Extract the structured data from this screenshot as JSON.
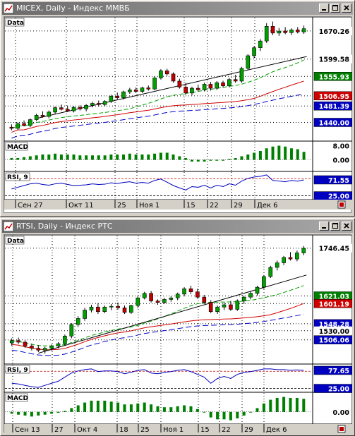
{
  "colors": {
    "up": "#00a000",
    "down": "#c00000",
    "price_line": "#000000",
    "grid": "#000000",
    "ma_green": "#00a000",
    "ma_red": "#d00000",
    "ma_blue": "#0000d0",
    "macd": "#008000",
    "rsi": "#0000c0"
  },
  "windows": [
    {
      "title": "MICEX, Daily - Индекс ММВБ",
      "price_panel_label": "Data",
      "price_labels": [
        {
          "text": "1670.26",
          "bg": "#ffffff",
          "fg": "#000000"
        },
        {
          "text": "1599.58",
          "bg": "#ffffff",
          "fg": "#000000"
        },
        {
          "text": "1555.93",
          "bg": "#008000",
          "fg": "#ffffff"
        },
        {
          "text": "1506.95",
          "bg": "#d00000",
          "fg": "#ffffff"
        },
        {
          "text": "1481.39",
          "bg": "#0000c0",
          "fg": "#ffffff"
        },
        {
          "text": "1440.00",
          "bg": "#0000c0",
          "fg": "#ffffff"
        }
      ],
      "macd_label": "MACD",
      "macd_ticks": [
        "8.00",
        "0.00"
      ],
      "rsi_label": "RSI, 9",
      "rsi_values": [
        {
          "text": "71.55",
          "bg": "#0000c0",
          "fg": "#ffffff"
        },
        {
          "text": "25.00",
          "bg": "#0000c0",
          "fg": "#ffffff"
        }
      ],
      "date_labels": [
        "Сен 27",
        "Окт 11",
        "25",
        "Ноя 1",
        "15",
        "22",
        "29",
        "Дек 6"
      ]
    },
    {
      "title": "RTSI, Daily - Индекс РТС",
      "price_panel_label": "Data",
      "price_labels": [
        {
          "text": "1746.45",
          "bg": "#ffffff",
          "fg": "#000000"
        },
        {
          "text": "1621.03",
          "bg": "#008000",
          "fg": "#ffffff"
        },
        {
          "text": "1601.19",
          "bg": "#d00000",
          "fg": "#ffffff"
        },
        {
          "text": "1548.28",
          "bg": "#0000c0",
          "fg": "#ffffff"
        },
        {
          "text": "1530.00",
          "bg": "#ffffff",
          "fg": "#000000"
        },
        {
          "text": "1506.06",
          "bg": "#0000c0",
          "fg": "#ffffff"
        }
      ],
      "rsi_label": "RSI, 9",
      "rsi_values": [
        {
          "text": "77.65",
          "bg": "#0000c0",
          "fg": "#ffffff"
        },
        {
          "text": "25.00",
          "bg": "#0000c0",
          "fg": "#ffffff"
        }
      ],
      "macd_label": "MACD",
      "macd_ticks": [
        "0.00"
      ],
      "date_labels": [
        "Сен 13",
        "27",
        "Окт 4",
        "18",
        "25",
        "Ноя 1",
        "15",
        "22",
        "29",
        "Дек 6"
      ]
    }
  ],
  "chart_data": [
    {
      "type": "candlestick",
      "title": "MICEX, Daily - Индекс ММВБ",
      "y_ticks": [
        1670.26,
        1599.58,
        1555.93,
        1506.95,
        1481.39,
        1440.0
      ],
      "x_labels": [
        "Сен 27",
        "Окт 11",
        "25",
        "Ноя 1",
        "15",
        "22",
        "29",
        "Дек 6"
      ],
      "indicators": [
        "MACD",
        "RSI, 9"
      ],
      "ylim": [
        1400,
        1695
      ],
      "candles": [
        [
          1428,
          1435,
          1420,
          1425
        ],
        [
          1425,
          1440,
          1421,
          1437
        ],
        [
          1437,
          1445,
          1430,
          1432
        ],
        [
          1432,
          1450,
          1428,
          1447
        ],
        [
          1447,
          1462,
          1443,
          1458
        ],
        [
          1458,
          1468,
          1452,
          1455
        ],
        [
          1455,
          1470,
          1450,
          1466
        ],
        [
          1466,
          1480,
          1462,
          1477
        ],
        [
          1477,
          1485,
          1470,
          1473
        ],
        [
          1473,
          1482,
          1466,
          1469
        ],
        [
          1469,
          1481,
          1465,
          1478
        ],
        [
          1478,
          1483,
          1470,
          1474
        ],
        [
          1474,
          1486,
          1468,
          1483
        ],
        [
          1483,
          1492,
          1478,
          1488
        ],
        [
          1488,
          1495,
          1480,
          1485
        ],
        [
          1485,
          1496,
          1481,
          1493
        ],
        [
          1493,
          1510,
          1489,
          1506
        ],
        [
          1506,
          1515,
          1498,
          1502
        ],
        [
          1502,
          1520,
          1498,
          1517
        ],
        [
          1517,
          1527,
          1512,
          1522
        ],
        [
          1522,
          1528,
          1514,
          1518
        ],
        [
          1518,
          1530,
          1514,
          1527
        ],
        [
          1527,
          1533,
          1520,
          1524
        ],
        [
          1524,
          1556,
          1521,
          1552
        ],
        [
          1552,
          1574,
          1548,
          1570
        ],
        [
          1570,
          1575,
          1558,
          1562
        ],
        [
          1562,
          1566,
          1540,
          1544
        ],
        [
          1544,
          1550,
          1525,
          1529
        ],
        [
          1529,
          1540,
          1510,
          1514
        ],
        [
          1514,
          1530,
          1508,
          1526
        ],
        [
          1526,
          1535,
          1518,
          1522
        ],
        [
          1522,
          1540,
          1518,
          1536
        ],
        [
          1536,
          1542,
          1520,
          1526
        ],
        [
          1526,
          1544,
          1522,
          1540
        ],
        [
          1540,
          1545,
          1528,
          1532
        ],
        [
          1532,
          1552,
          1528,
          1548
        ],
        [
          1548,
          1560,
          1540,
          1544
        ],
        [
          1544,
          1580,
          1540,
          1576
        ],
        [
          1576,
          1612,
          1572,
          1608
        ],
        [
          1608,
          1632,
          1602,
          1628
        ],
        [
          1628,
          1650,
          1620,
          1645
        ],
        [
          1645,
          1690,
          1640,
          1682
        ],
        [
          1682,
          1694,
          1660,
          1665
        ],
        [
          1665,
          1678,
          1658,
          1670
        ],
        [
          1670,
          1680,
          1662,
          1666
        ],
        [
          1666,
          1677,
          1660,
          1673
        ],
        [
          1673,
          1680,
          1664,
          1668
        ],
        [
          1668,
          1684,
          1663,
          1676
        ]
      ],
      "macd": [
        1,
        1,
        1.5,
        2,
        2.5,
        3,
        3,
        3.5,
        3,
        3,
        3,
        2.5,
        2.5,
        2.5,
        2.5,
        2.5,
        3,
        3,
        3,
        3.5,
        3,
        3,
        3,
        3.5,
        4,
        4,
        3,
        2,
        1,
        -1,
        -1,
        -1,
        -0.5,
        -0.5,
        -0.5,
        0.5,
        1,
        2,
        3,
        4,
        5,
        6.5,
        7.5,
        8,
        7.5,
        6.5,
        6,
        4.5
      ],
      "rsi": [
        45,
        50,
        55,
        60,
        62,
        58,
        56,
        60,
        62,
        58,
        55,
        56,
        57,
        60,
        58,
        59,
        63,
        61,
        64,
        66,
        62,
        64,
        62,
        70,
        74,
        65,
        55,
        48,
        42,
        52,
        50,
        56,
        48,
        56,
        52,
        60,
        56,
        68,
        76,
        80,
        82,
        86,
        70,
        68,
        66,
        70,
        68,
        71.55
      ]
    },
    {
      "type": "candlestick",
      "title": "RTSI, Daily - Индекс РТС",
      "y_ticks": [
        1746.45,
        1621.03,
        1601.19,
        1548.28,
        1530.0,
        1506.06
      ],
      "x_labels": [
        "Сен 13",
        "27",
        "Окт 4",
        "18",
        "25",
        "Ноя 1",
        "15",
        "22",
        "29",
        "Дек 6"
      ],
      "indicators": [
        "RSI, 9",
        "MACD"
      ],
      "ylim": [
        1450,
        1770
      ],
      "candles": [
        [
          1498,
          1510,
          1490,
          1504
        ],
        [
          1504,
          1512,
          1495,
          1500
        ],
        [
          1500,
          1505,
          1485,
          1490
        ],
        [
          1490,
          1496,
          1478,
          1484
        ],
        [
          1484,
          1492,
          1474,
          1479
        ],
        [
          1479,
          1488,
          1470,
          1484
        ],
        [
          1484,
          1494,
          1478,
          1490
        ],
        [
          1490,
          1500,
          1484,
          1496
        ],
        [
          1496,
          1520,
          1490,
          1516
        ],
        [
          1516,
          1550,
          1510,
          1546
        ],
        [
          1546,
          1568,
          1540,
          1562
        ],
        [
          1562,
          1590,
          1556,
          1584
        ],
        [
          1584,
          1598,
          1578,
          1592
        ],
        [
          1592,
          1602,
          1574,
          1580
        ],
        [
          1580,
          1596,
          1576,
          1592
        ],
        [
          1592,
          1600,
          1584,
          1594
        ],
        [
          1594,
          1604,
          1586,
          1590
        ],
        [
          1590,
          1596,
          1574,
          1578
        ],
        [
          1578,
          1598,
          1574,
          1596
        ],
        [
          1596,
          1620,
          1590,
          1616
        ],
        [
          1616,
          1632,
          1612,
          1628
        ],
        [
          1628,
          1634,
          1604,
          1608
        ],
        [
          1608,
          1612,
          1598,
          1604
        ],
        [
          1604,
          1616,
          1600,
          1612
        ],
        [
          1612,
          1620,
          1606,
          1616
        ],
        [
          1616,
          1630,
          1610,
          1626
        ],
        [
          1626,
          1644,
          1620,
          1640
        ],
        [
          1640,
          1648,
          1626,
          1632
        ],
        [
          1632,
          1640,
          1614,
          1618
        ],
        [
          1618,
          1624,
          1600,
          1604
        ],
        [
          1604,
          1610,
          1576,
          1580
        ],
        [
          1580,
          1596,
          1574,
          1592
        ],
        [
          1592,
          1604,
          1584,
          1598
        ],
        [
          1598,
          1608,
          1582,
          1586
        ],
        [
          1586,
          1612,
          1582,
          1608
        ],
        [
          1608,
          1622,
          1600,
          1618
        ],
        [
          1618,
          1632,
          1612,
          1628
        ],
        [
          1628,
          1648,
          1622,
          1644
        ],
        [
          1644,
          1676,
          1640,
          1672
        ],
        [
          1672,
          1700,
          1668,
          1696
        ],
        [
          1696,
          1714,
          1688,
          1708
        ],
        [
          1708,
          1726,
          1702,
          1722
        ],
        [
          1722,
          1736,
          1714,
          1718
        ],
        [
          1718,
          1740,
          1712,
          1734
        ],
        [
          1734,
          1752,
          1728,
          1746
        ]
      ],
      "rsi": [
        40,
        38,
        34,
        30,
        28,
        34,
        40,
        46,
        58,
        70,
        76,
        80,
        82,
        74,
        76,
        76,
        74,
        68,
        72,
        78,
        80,
        70,
        68,
        72,
        74,
        78,
        80,
        74,
        66,
        58,
        40,
        54,
        60,
        54,
        66,
        72,
        74,
        78,
        82,
        82,
        80,
        80,
        78,
        79,
        77.65
      ],
      "macd": [
        -1,
        -1.5,
        -2,
        -2.5,
        -2,
        -1.5,
        -1,
        -0.5,
        0.5,
        2,
        3.5,
        5,
        6,
        6,
        6,
        5.5,
        5,
        4,
        4,
        4.5,
        5,
        4,
        3,
        2.5,
        2.5,
        3,
        3.5,
        3,
        1.5,
        0,
        -3,
        -4,
        -4,
        -4.5,
        -3.5,
        -2,
        0,
        2,
        4.5,
        6.5,
        7.5,
        8,
        7.5,
        7.5,
        7
      ]
    }
  ]
}
